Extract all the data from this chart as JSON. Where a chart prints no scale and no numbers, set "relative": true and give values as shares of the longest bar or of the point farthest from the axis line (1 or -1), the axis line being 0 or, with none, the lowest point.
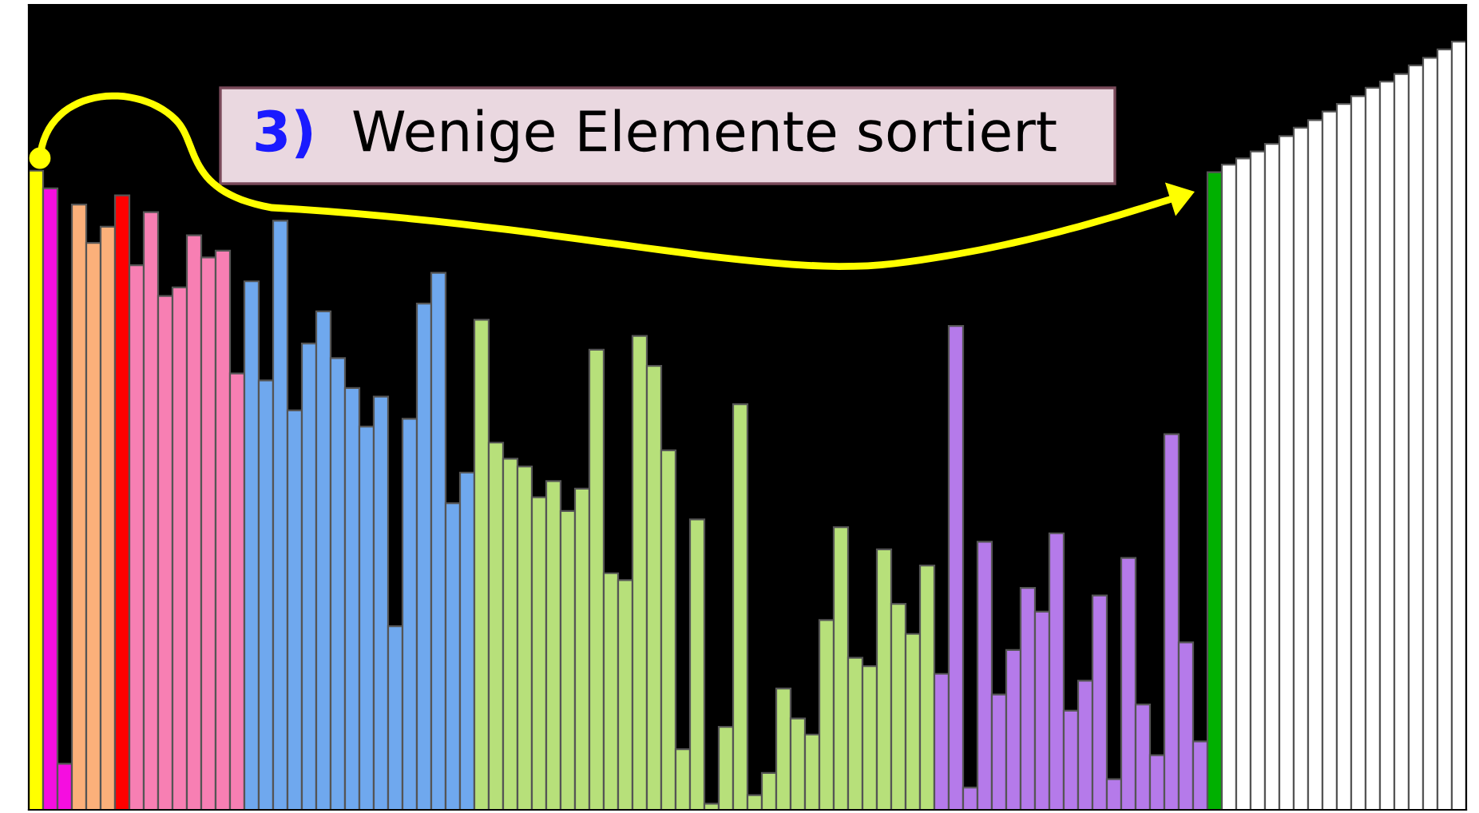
{
  "chart_data": {
    "type": "bar",
    "relative": true,
    "categories": [
      null,
      null,
      null,
      null,
      null,
      null,
      null,
      null,
      null,
      null,
      null,
      null,
      null,
      null,
      null,
      null,
      null,
      null,
      null,
      null,
      null,
      null,
      null,
      null,
      null,
      null,
      null,
      null,
      null,
      null,
      null,
      null,
      null,
      null,
      null,
      null,
      null,
      null,
      null,
      null,
      null,
      null,
      null,
      null,
      null,
      null,
      null,
      null,
      null,
      null,
      null,
      null,
      null,
      null,
      null,
      null,
      null,
      null,
      null,
      null,
      null,
      null,
      null,
      null,
      null,
      null,
      null,
      null,
      null,
      null,
      null,
      null,
      null,
      null,
      null,
      null,
      null,
      null,
      null,
      null,
      null,
      null,
      null,
      null,
      null,
      null,
      null,
      null,
      null,
      null,
      null,
      null,
      null,
      null,
      null,
      null,
      null,
      null,
      null,
      null
    ],
    "values": [
      0.832,
      0.809,
      0.06,
      0.788,
      0.738,
      0.759,
      0.8,
      0.709,
      0.778,
      0.669,
      0.68,
      0.748,
      0.719,
      0.728,
      0.568,
      0.688,
      0.559,
      0.767,
      0.52,
      0.607,
      0.649,
      0.588,
      0.549,
      0.499,
      0.538,
      0.239,
      0.509,
      0.659,
      0.699,
      0.399,
      0.439,
      0.638,
      0.478,
      0.457,
      0.447,
      0.407,
      0.428,
      0.389,
      0.418,
      0.599,
      0.308,
      0.299,
      0.617,
      0.578,
      0.468,
      0.079,
      0.378,
      0.008,
      0.108,
      0.528,
      0.019,
      0.048,
      0.158,
      0.119,
      0.098,
      0.247,
      0.368,
      0.198,
      0.187,
      0.339,
      0.268,
      0.229,
      0.318,
      0.177,
      0.63,
      0.029,
      0.349,
      0.15,
      0.208,
      0.289,
      0.258,
      0.36,
      0.129,
      0.168,
      0.279,
      0.04,
      0.328,
      0.137,
      0.071,
      0.489,
      0.218,
      0.089,
      0.83,
      0.84,
      0.848,
      0.857,
      0.867,
      0.877,
      0.888,
      0.898,
      0.909,
      0.919,
      0.929,
      0.94,
      0.948,
      0.958,
      0.969,
      0.979,
      0.99,
      1.0
    ],
    "colors": [
      "#ffff00",
      "#f50ee0",
      "#f50ee0",
      "#fbb07a",
      "#fbb07a",
      "#fbb07a",
      "#ff0000",
      "#f77fb3",
      "#f77fb3",
      "#f77fb3",
      "#f77fb3",
      "#f77fb3",
      "#f77fb3",
      "#f77fb3",
      "#f77fb3",
      "#6fa8ee",
      "#6fa8ee",
      "#6fa8ee",
      "#6fa8ee",
      "#6fa8ee",
      "#6fa8ee",
      "#6fa8ee",
      "#6fa8ee",
      "#6fa8ee",
      "#6fa8ee",
      "#6fa8ee",
      "#6fa8ee",
      "#6fa8ee",
      "#6fa8ee",
      "#6fa8ee",
      "#6fa8ee",
      "#b7e07a",
      "#b7e07a",
      "#b7e07a",
      "#b7e07a",
      "#b7e07a",
      "#b7e07a",
      "#b7e07a",
      "#b7e07a",
      "#b7e07a",
      "#b7e07a",
      "#b7e07a",
      "#b7e07a",
      "#b7e07a",
      "#b7e07a",
      "#b7e07a",
      "#b7e07a",
      "#b7e07a",
      "#b7e07a",
      "#b7e07a",
      "#b7e07a",
      "#b7e07a",
      "#b7e07a",
      "#b7e07a",
      "#b7e07a",
      "#b7e07a",
      "#b7e07a",
      "#b7e07a",
      "#b7e07a",
      "#b7e07a",
      "#b7e07a",
      "#b7e07a",
      "#b7e07a",
      "#b57aea",
      "#b57aea",
      "#b57aea",
      "#b57aea",
      "#b57aea",
      "#b57aea",
      "#b57aea",
      "#b57aea",
      "#b57aea",
      "#b57aea",
      "#b57aea",
      "#b57aea",
      "#b57aea",
      "#b57aea",
      "#b57aea",
      "#b57aea",
      "#b57aea",
      "#b57aea",
      "#b57aea",
      "#00b000",
      "#ffffff",
      "#ffffff",
      "#ffffff",
      "#ffffff",
      "#ffffff",
      "#ffffff",
      "#ffffff",
      "#ffffff",
      "#ffffff",
      "#ffffff",
      "#ffffff",
      "#ffffff",
      "#ffffff",
      "#ffffff",
      "#ffffff",
      "#ffffff",
      "#ffffff"
    ],
    "annotations": [
      "3)",
      "Wenige Elemente sortiert"
    ]
  }
}
